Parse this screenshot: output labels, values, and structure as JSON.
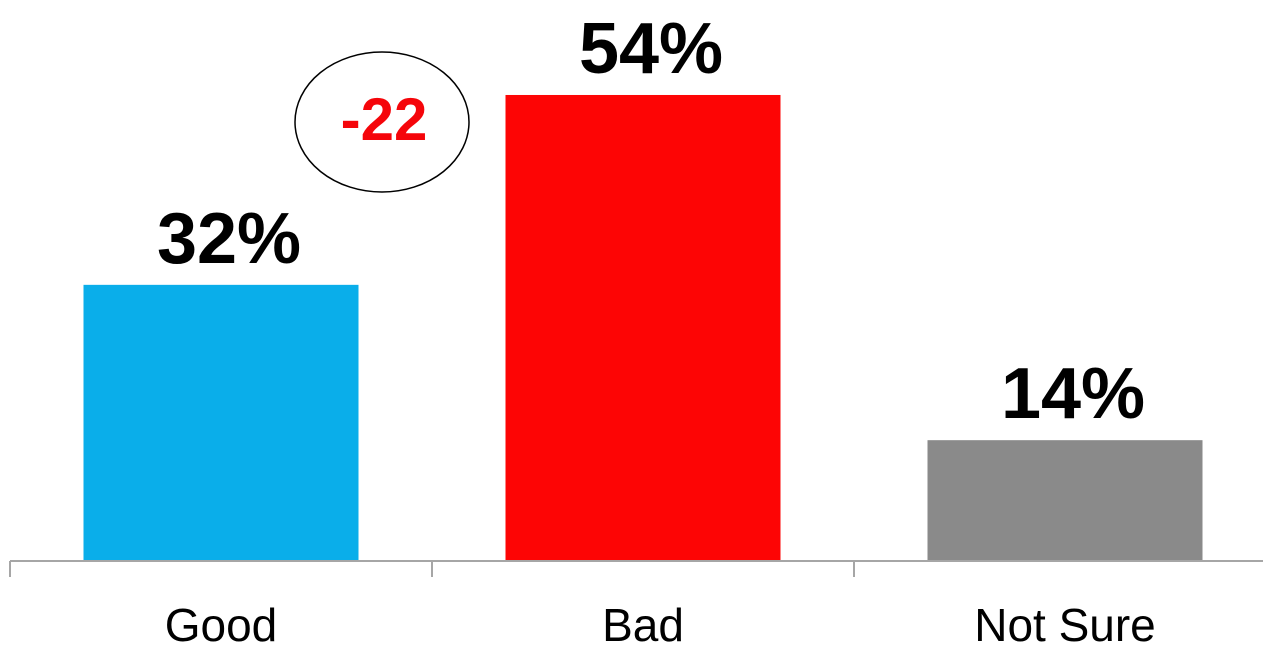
{
  "chart_data": {
    "type": "bar",
    "categories": [
      "Good",
      "Bad",
      "Not Sure"
    ],
    "values": [
      32,
      54,
      14
    ],
    "value_labels": [
      "32%",
      "54%",
      "14%"
    ],
    "colors": [
      "#0aaeea",
      "#fd0505",
      "#8a8a8a"
    ],
    "ylim": [
      0,
      60
    ],
    "grid": false,
    "annotation": {
      "text": "-22",
      "color": "#f5050a",
      "shape": "circle"
    }
  }
}
